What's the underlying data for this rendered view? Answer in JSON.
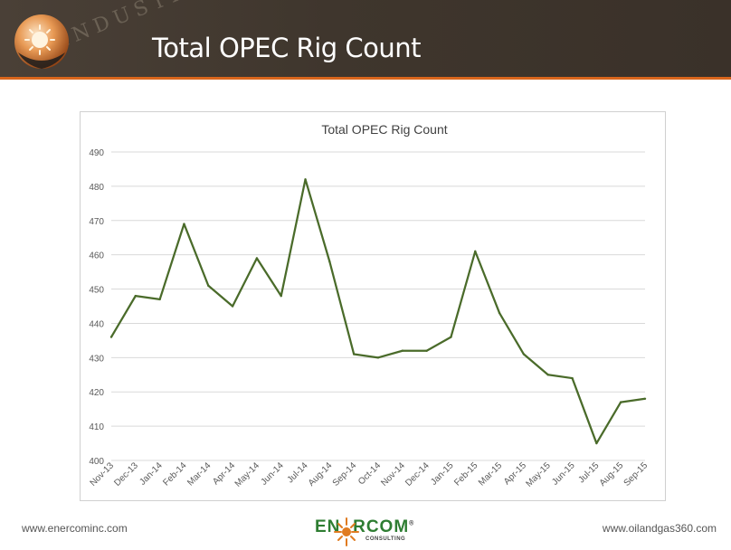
{
  "slide": {
    "title": "Total OPEC Rig Count",
    "watermark_text": "INDUSTRY",
    "footer_left": "www.enercominc.com",
    "footer_right": "www.oilandgas360.com",
    "brand_name": "ENERCOM",
    "brand_mark": "®",
    "brand_sub": "CONSULTING"
  },
  "colors": {
    "header_bg": "#3f362d",
    "accent_stripe": "#d9661c",
    "series_line": "#4a6b2a",
    "grid": "#d9d9d9",
    "brand_green": "#2e7d32",
    "brand_orange": "#e07b20"
  },
  "chart_data": {
    "type": "line",
    "title": "Total OPEC Rig Count",
    "xlabel": "",
    "ylabel": "",
    "ylim": [
      400,
      490
    ],
    "yticks": [
      400,
      410,
      420,
      430,
      440,
      450,
      460,
      470,
      480,
      490
    ],
    "grid": true,
    "legend": "none",
    "categories": [
      "Nov-13",
      "Dec-13",
      "Jan-14",
      "Feb-14",
      "Mar-14",
      "Apr-14",
      "May-14",
      "Jun-14",
      "Jul-14",
      "Aug-14",
      "Sep-14",
      "Oct-14",
      "Nov-14",
      "Dec-14",
      "Jan-15",
      "Feb-15",
      "Mar-15",
      "Apr-15",
      "May-15",
      "Jun-15",
      "Jul-15",
      "Aug-15",
      "Sep-15"
    ],
    "series": [
      {
        "name": "Total OPEC Rig Count",
        "values": [
          436,
          448,
          447,
          469,
          451,
          445,
          459,
          448,
          482,
          458,
          431,
          430,
          432,
          432,
          436,
          461,
          443,
          431,
          425,
          424,
          405,
          417,
          418
        ]
      }
    ]
  }
}
